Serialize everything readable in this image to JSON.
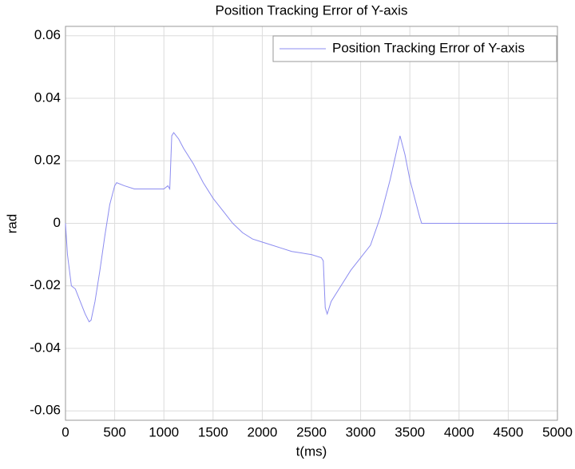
{
  "chart_data": {
    "type": "line",
    "title": "Position Tracking Error of Y-axis",
    "x_label": "t(ms)",
    "y_label": "rad",
    "x": [
      0,
      20,
      60,
      100,
      150,
      200,
      240,
      260,
      300,
      350,
      400,
      450,
      500,
      520,
      600,
      700,
      800,
      900,
      1000,
      1040,
      1060,
      1080,
      1100,
      1150,
      1200,
      1300,
      1400,
      1500,
      1600,
      1700,
      1800,
      1900,
      2000,
      2100,
      2200,
      2300,
      2400,
      2500,
      2600,
      2620,
      2640,
      2660,
      2700,
      2800,
      2900,
      3000,
      3100,
      3200,
      3300,
      3350,
      3400,
      3450,
      3500,
      3550,
      3600,
      3620,
      3650,
      5000
    ],
    "series": [
      {
        "name": "Position Tracking Error of Y-axis",
        "color": "#8c8cf0",
        "values": [
          0,
          -0.01,
          -0.02,
          -0.021,
          -0.025,
          -0.029,
          -0.0315,
          -0.031,
          -0.025,
          -0.015,
          -0.004,
          0.006,
          0.012,
          0.013,
          0.012,
          0.011,
          0.011,
          0.011,
          0.011,
          0.012,
          0.011,
          0.028,
          0.029,
          0.027,
          0.024,
          0.019,
          0.013,
          0.008,
          0.004,
          0.0,
          -0.003,
          -0.005,
          -0.006,
          -0.007,
          -0.008,
          -0.009,
          -0.0095,
          -0.01,
          -0.011,
          -0.012,
          -0.027,
          -0.029,
          -0.025,
          -0.02,
          -0.015,
          -0.011,
          -0.007,
          0.002,
          0.014,
          0.021,
          0.028,
          0.022,
          0.014,
          0.008,
          0.002,
          0,
          0,
          0
        ]
      }
    ],
    "xlim": [
      0,
      5000
    ],
    "xticks": [
      0,
      500,
      1000,
      1500,
      2000,
      2500,
      3000,
      3500,
      4000,
      4500,
      5000
    ],
    "ylim": [
      -0.063,
      0.063
    ],
    "yticks": [
      -0.06,
      -0.04,
      -0.02,
      0,
      0.02,
      0.04,
      0.06
    ],
    "grid": true,
    "legend": "upper-right"
  }
}
